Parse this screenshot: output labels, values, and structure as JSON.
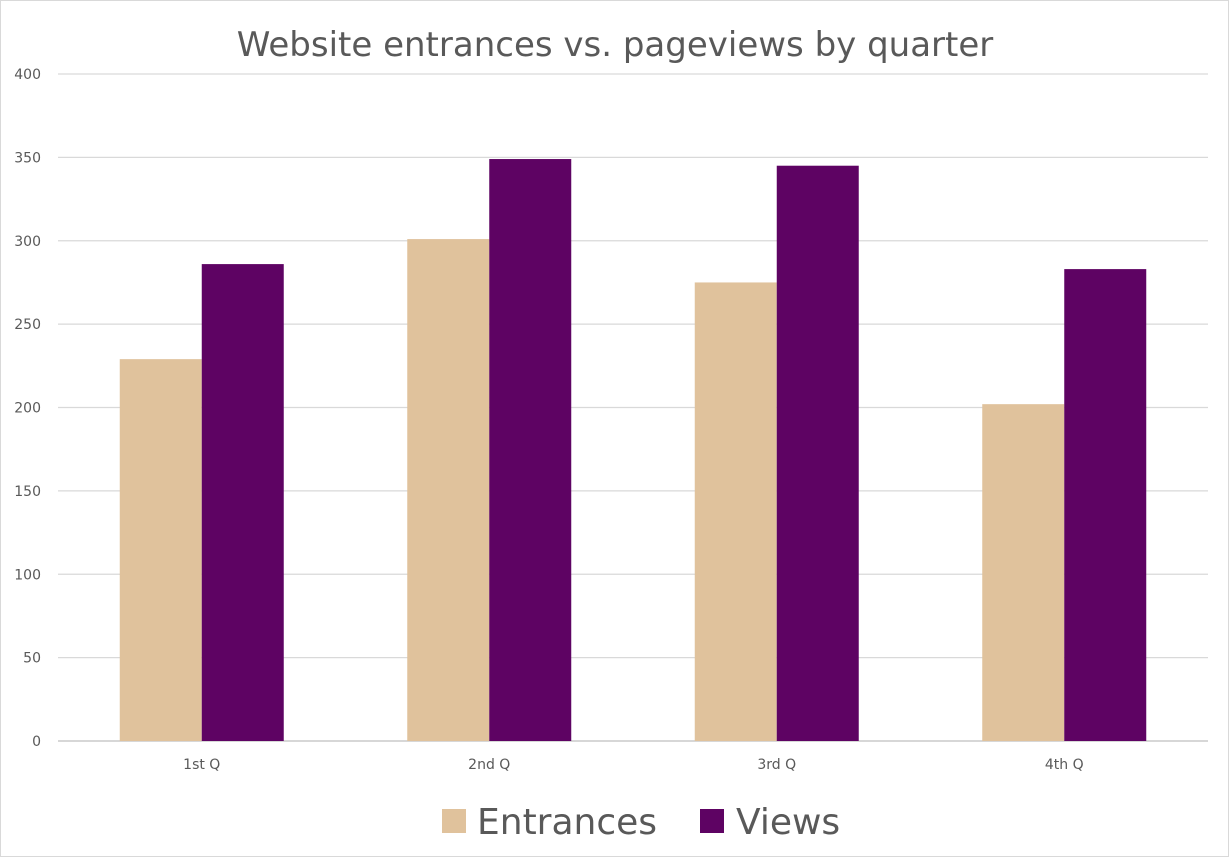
{
  "chart_data": {
    "type": "bar",
    "title": "Website entrances vs. pageviews by quarter",
    "xlabel": "",
    "ylabel": "",
    "categories": [
      "1st Q",
      "2nd Q",
      "3rd Q",
      "4th Q"
    ],
    "series": [
      {
        "name": "Entrances",
        "color": "#e0c29c",
        "values": [
          229,
          301,
          275,
          202
        ]
      },
      {
        "name": "Views",
        "color": "#5e0363",
        "values": [
          286,
          349,
          345,
          283
        ]
      }
    ],
    "ylim": [
      0,
      400
    ],
    "yticks": [
      0,
      50,
      100,
      150,
      200,
      250,
      300,
      350,
      400
    ],
    "grid": true,
    "legend_position": "bottom"
  }
}
